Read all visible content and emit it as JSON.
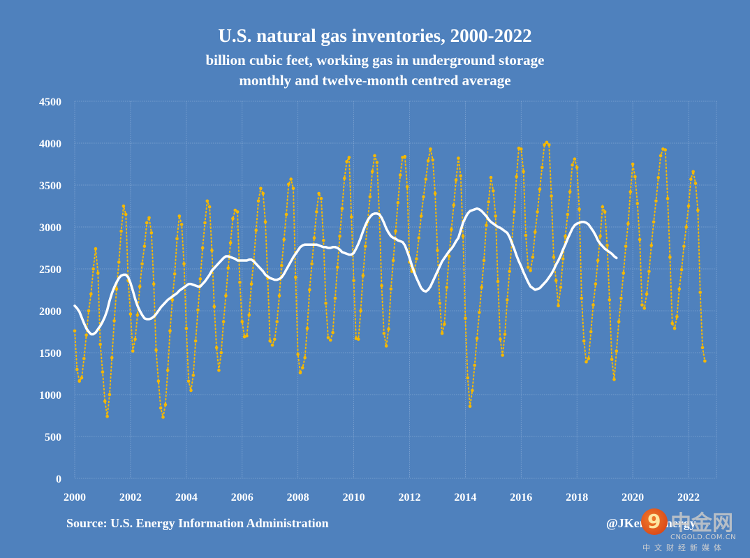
{
  "chart_data": {
    "type": "line",
    "title": "U.S. natural gas inventories, 2000-2022",
    "subtitle": [
      "billion cubic feet, working gas in underground storage",
      "monthly and twelve-month centred average"
    ],
    "xlabel": "",
    "ylabel": "",
    "ylim": [
      0,
      4500
    ],
    "xlim": [
      2000,
      2022.99
    ],
    "yticks": [
      0,
      500,
      1000,
      1500,
      2000,
      2500,
      3000,
      3500,
      4000,
      4500
    ],
    "xticks": [
      2000,
      2002,
      2004,
      2006,
      2008,
      2010,
      2012,
      2014,
      2016,
      2018,
      2020,
      2022
    ],
    "grid": true,
    "legend": "none",
    "series": [
      {
        "name": "monthly",
        "style": "dotted-markers",
        "color": "#f5b800",
        "start": "2000-01",
        "values": [
          1760,
          1300,
          1160,
          1200,
          1430,
          1710,
          2000,
          2200,
          2500,
          2740,
          2450,
          1600,
          1270,
          920,
          740,
          1000,
          1440,
          1880,
          2260,
          2580,
          2950,
          3250,
          3150,
          2360,
          1960,
          1520,
          1660,
          1950,
          2290,
          2560,
          2770,
          3050,
          3110,
          2930,
          2320,
          1530,
          1160,
          840,
          730,
          880,
          1290,
          1760,
          2130,
          2440,
          2860,
          3130,
          3030,
          2560,
          1790,
          1160,
          1050,
          1230,
          1640,
          2010,
          2380,
          2750,
          3050,
          3310,
          3240,
          2720,
          2050,
          1560,
          1290,
          1500,
          1870,
          2180,
          2510,
          2810,
          3100,
          3200,
          3180,
          2340,
          1870,
          1690,
          1700,
          1950,
          2320,
          2600,
          2960,
          3310,
          3460,
          3400,
          3060,
          2390,
          1640,
          1590,
          1660,
          1870,
          2180,
          2540,
          2850,
          3150,
          3510,
          3570,
          3460,
          2400,
          1480,
          1260,
          1320,
          1440,
          1790,
          2250,
          2560,
          2870,
          3180,
          3400,
          3340,
          2840,
          2090,
          1680,
          1650,
          1740,
          2150,
          2520,
          2890,
          3220,
          3580,
          3780,
          3830,
          3120,
          2360,
          1670,
          1660,
          2000,
          2420,
          2770,
          3060,
          3360,
          3660,
          3850,
          3770,
          3150,
          2300,
          1730,
          1580,
          1780,
          2260,
          2600,
          2950,
          3290,
          3620,
          3830,
          3840,
          3480,
          2580,
          2470,
          2470,
          2620,
          2870,
          3130,
          3360,
          3570,
          3790,
          3930,
          3800,
          3400,
          2720,
          2090,
          1730,
          1840,
          2280,
          2650,
          2970,
          3260,
          3560,
          3820,
          3610,
          2890,
          1910,
          1200,
          860,
          1050,
          1350,
          1670,
          1980,
          2280,
          2600,
          3020,
          3300,
          3590,
          3430,
          3130,
          2350,
          1660,
          1470,
          1720,
          2130,
          2470,
          2820,
          3180,
          3600,
          3940,
          3930,
          3660,
          2900,
          2520,
          2480,
          2640,
          2940,
          3180,
          3450,
          3710,
          3980,
          4010,
          3980,
          3370,
          2640,
          2360,
          2060,
          2280,
          2620,
          2890,
          3150,
          3420,
          3740,
          3810,
          3710,
          3210,
          2150,
          1640,
          1390,
          1430,
          1750,
          2070,
          2320,
          2600,
          2890,
          3240,
          3180,
          2780,
          2130,
          1420,
          1180,
          1520,
          1870,
          2150,
          2450,
          2770,
          3040,
          3420,
          3750,
          3600,
          3280,
          2850,
          2070,
          2030,
          2200,
          2470,
          2780,
          3060,
          3310,
          3590,
          3850,
          3930,
          3920,
          3340,
          2640,
          1850,
          1790,
          1930,
          2260,
          2490,
          2770,
          3000,
          3250,
          3570,
          3660,
          3520,
          3200,
          2220,
          1560,
          1400
        ]
      },
      {
        "name": "twelve-month centred average",
        "style": "solid",
        "color": "#ffffff",
        "start": "2000-01",
        "values": [
          2060,
          2030,
          1990,
          1920,
          1850,
          1790,
          1750,
          1720,
          1720,
          1740,
          1780,
          1820,
          1870,
          1930,
          2010,
          2120,
          2210,
          2280,
          2340,
          2390,
          2420,
          2430,
          2430,
          2400,
          2330,
          2240,
          2140,
          2060,
          2000,
          1950,
          1910,
          1900,
          1900,
          1910,
          1930,
          1960,
          2000,
          2040,
          2070,
          2100,
          2130,
          2150,
          2170,
          2190,
          2210,
          2240,
          2260,
          2280,
          2300,
          2320,
          2320,
          2310,
          2300,
          2290,
          2290,
          2320,
          2350,
          2390,
          2430,
          2480,
          2510,
          2540,
          2570,
          2600,
          2630,
          2650,
          2650,
          2640,
          2630,
          2620,
          2600,
          2600,
          2600,
          2600,
          2600,
          2610,
          2610,
          2590,
          2560,
          2530,
          2500,
          2470,
          2430,
          2410,
          2390,
          2380,
          2370,
          2370,
          2380,
          2400,
          2440,
          2490,
          2540,
          2590,
          2640,
          2680,
          2720,
          2760,
          2780,
          2790,
          2790,
          2790,
          2790,
          2790,
          2790,
          2780,
          2770,
          2760,
          2760,
          2750,
          2750,
          2760,
          2760,
          2750,
          2730,
          2700,
          2690,
          2680,
          2670,
          2670,
          2690,
          2740,
          2800,
          2870,
          2950,
          3020,
          3080,
          3120,
          3150,
          3160,
          3160,
          3150,
          3110,
          3050,
          2980,
          2930,
          2890,
          2870,
          2860,
          2840,
          2830,
          2820,
          2780,
          2710,
          2630,
          2540,
          2460,
          2390,
          2330,
          2270,
          2240,
          2230,
          2250,
          2290,
          2350,
          2410,
          2470,
          2530,
          2590,
          2630,
          2670,
          2710,
          2740,
          2780,
          2830,
          2870,
          2960,
          3050,
          3110,
          3160,
          3190,
          3200,
          3210,
          3220,
          3210,
          3190,
          3160,
          3130,
          3090,
          3060,
          3040,
          3020,
          3000,
          2990,
          2970,
          2950,
          2930,
          2880,
          2810,
          2740,
          2660,
          2590,
          2530,
          2460,
          2400,
          2340,
          2290,
          2270,
          2250,
          2260,
          2270,
          2300,
          2330,
          2360,
          2400,
          2440,
          2490,
          2550,
          2600,
          2660,
          2730,
          2790,
          2860,
          2920,
          2980,
          3020,
          3040,
          3050,
          3060,
          3060,
          3050,
          3030,
          2990,
          2950,
          2900,
          2840,
          2800,
          2770,
          2740,
          2720,
          2700,
          2680,
          2650,
          2630
        ]
      }
    ]
  },
  "header": {
    "title": "U.S. natural gas inventories, 2000-2022",
    "subtitle_1": "billion cubic feet, working gas in underground storage",
    "subtitle_2": "monthly and twelve-month centred average"
  },
  "footer": {
    "source": "Source: U.S. Energy Information Administration",
    "handle": "@JKempEnergy"
  },
  "watermark": {
    "logo_glyph": "9",
    "cn_name": "中金网",
    "domain": "CNGOLD.COM.CN",
    "tagline": "中文财经新媒体"
  },
  "colors": {
    "background": "#4f81bd",
    "monthly": "#f5b800",
    "average": "#ffffff",
    "grid": "#8fb0d9"
  }
}
